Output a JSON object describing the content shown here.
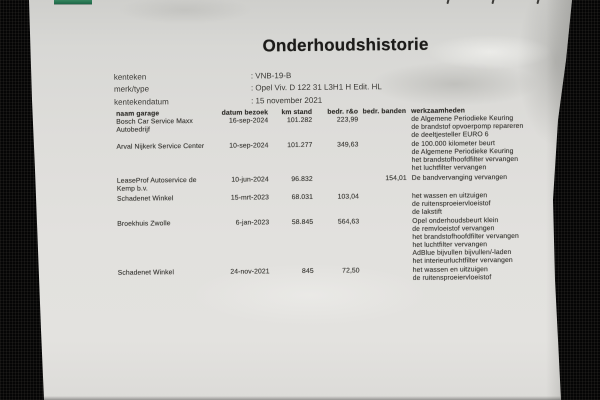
{
  "title": "Onderhoudshistorie",
  "vehicle_info": {
    "rows": [
      {
        "label": "kenteken",
        "value": ": VNB-19-B"
      },
      {
        "label": "merk/type",
        "value": ": Opel Viv. D 122 31 L3H1 H Edit. HL"
      },
      {
        "label": "kentekendatum",
        "value": ": 15 november 2021"
      }
    ]
  },
  "table": {
    "headers": {
      "garage": "naam garage",
      "date": "datum bezoek",
      "km": "km stand",
      "repair": "bedr. r&o",
      "tires": "bedr. banden",
      "work": "werkzaamheden"
    },
    "rows": [
      {
        "garage": "Bosch Car Service Maxx Autobedrijf",
        "date": "16-sep-2024",
        "km": "101.282",
        "repair": "223,99",
        "tires": "",
        "work": [
          "de Algemene Periodieke Keuring",
          "de brandstof opvoerpomp repareren",
          "de deeltjesteller EURO 6"
        ]
      },
      {
        "garage": "Arval Nijkerk Service Center",
        "date": "10-sep-2024",
        "km": "101.277",
        "repair": "349,63",
        "tires": "",
        "work": [
          "de 100.000 kilometer beurt",
          "de Algemene Periodieke Keuring",
          "het brandstofhoofdfilter vervangen",
          "het luchtfilter vervangen"
        ]
      },
      {
        "garage": "LeaseProf Autoservice de Kemp b.v.",
        "date": "10-jun-2024",
        "km": "96.832",
        "repair": "",
        "tires": "154,01",
        "work": [
          "De bandvervanging vervangen"
        ]
      },
      {
        "garage": "Schadenet Winkel",
        "date": "15-mrt-2023",
        "km": "68.031",
        "repair": "103,04",
        "tires": "",
        "work": [
          "het wassen en uitzuigen",
          "de ruitensproeiervloeistof",
          "de lakstift"
        ]
      },
      {
        "garage": "Broekhuis Zwolle",
        "date": "6-jan-2023",
        "km": "58.845",
        "repair": "564,63",
        "tires": "",
        "work": [
          "Opel onderhoudsbeurt klein",
          "de remvloeistof vervangen",
          "het brandstofhoofdfilter vervangen",
          "het luchtfilter vervangen",
          "AdBlue bijvullen bijvullen/-laden",
          "het interieurluchtfilter vervangen"
        ]
      },
      {
        "garage": "Schadenet Winkel",
        "date": "24-nov-2021",
        "km": "845",
        "repair": "72,50",
        "tires": "",
        "work": [
          "het wassen en uitzuigen",
          "de ruitensproeiervloeistof"
        ]
      }
    ]
  },
  "colors": {
    "paper": "#e0dfdc",
    "background": "#050505",
    "accent_green": "#2d7b58",
    "text": "#3c3b37"
  }
}
